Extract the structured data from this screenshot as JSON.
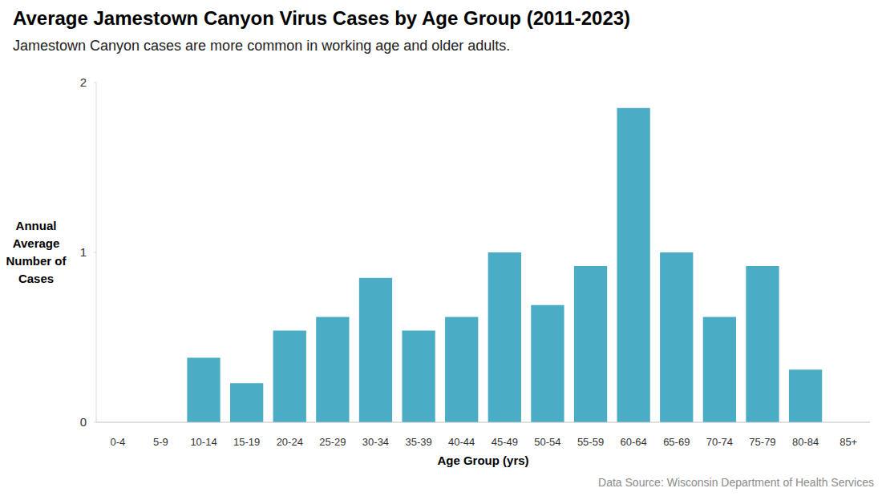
{
  "chart_data": {
    "type": "bar",
    "title": "Average Jamestown Canyon Virus Cases by Age Group (2011-2023)",
    "subtitle": "Jamestown Canyon cases are more common in working age and older adults.",
    "x_label": "Age Group (yrs)",
    "y_label": "Annual Average Number of Cases",
    "source": "Data Source: Wisconsin Department of Health Services",
    "categories": [
      "0-4",
      "5-9",
      "10-14",
      "15-19",
      "20-24",
      "25-29",
      "30-34",
      "35-39",
      "40-44",
      "45-49",
      "50-54",
      "55-59",
      "60-64",
      "65-69",
      "70-74",
      "75-79",
      "80-84",
      "85+"
    ],
    "values": [
      0,
      0,
      0.38,
      0.23,
      0.54,
      0.62,
      0.85,
      0.54,
      0.62,
      1.0,
      0.69,
      0.92,
      1.85,
      1.0,
      0.62,
      0.92,
      0.31,
      0
    ],
    "color": "#4bacc6",
    "ylim": [
      0,
      2
    ],
    "yticks": [
      0,
      1,
      2
    ],
    "grid": false
  }
}
